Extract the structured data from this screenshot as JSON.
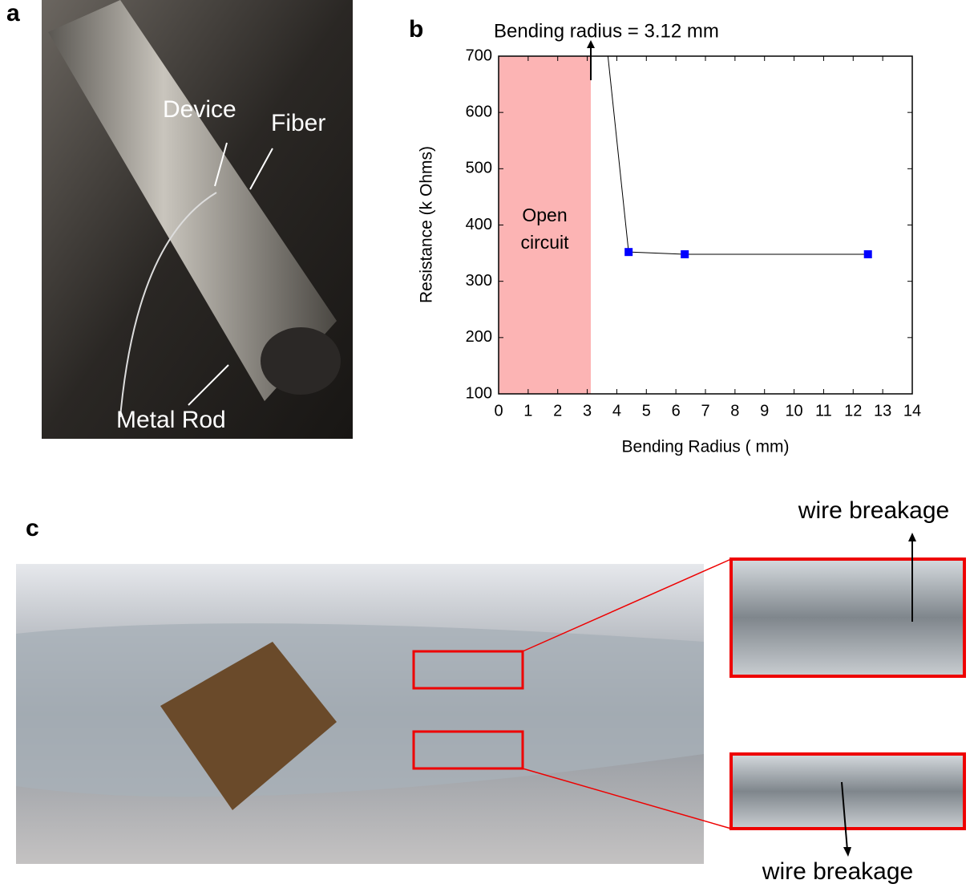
{
  "panel_a": {
    "label": "a",
    "annotations": [
      "Device",
      "Fiber",
      "Metal Rod"
    ]
  },
  "panel_c": {
    "label": "c",
    "annotations": [
      "wire breakage",
      "wire breakage"
    ]
  },
  "chart_data": {
    "type": "line",
    "panel_label": "b",
    "annotation": "Bending radius = 3.12 mm",
    "shaded_region": {
      "x": [
        0,
        3.12
      ],
      "label": [
        "Open",
        "circuit"
      ],
      "color": "#fcb4b4"
    },
    "x_label": "Bending Radius ( mm)",
    "y_label": "Resistance (k Ohms)",
    "x": [
      3.7,
      4.4,
      6.3,
      12.5
    ],
    "values": [
      700,
      352,
      348,
      348
    ],
    "line_color": "#000000",
    "marker_color": "#0000ff",
    "xlim": [
      0,
      14
    ],
    "xticks": [
      0,
      1,
      2,
      3,
      4,
      5,
      6,
      7,
      8,
      9,
      10,
      11,
      12,
      13,
      14
    ],
    "ylim": [
      100,
      700
    ],
    "yticks": [
      100,
      200,
      300,
      400,
      500,
      600,
      700
    ]
  }
}
